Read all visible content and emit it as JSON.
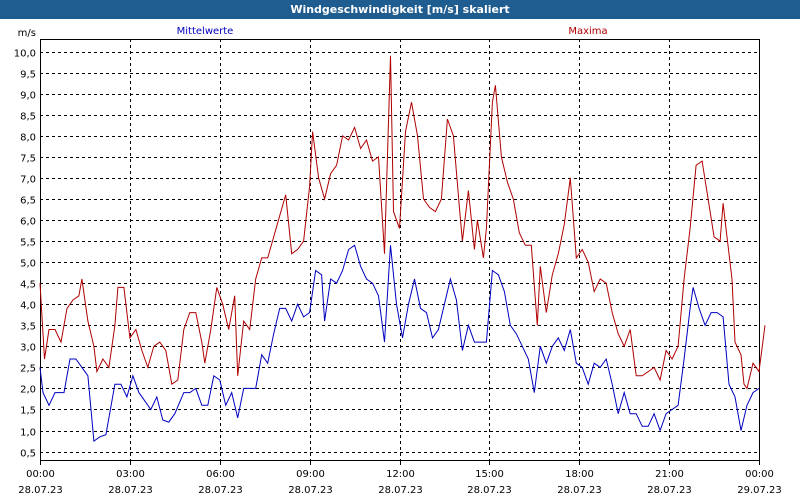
{
  "window": {
    "title": "Windgeschwindigkeit [m/s] skaliert"
  },
  "chart_data": {
    "type": "line",
    "title": "Windgeschwindigkeit [m/s] skaliert",
    "ylabel": "m/s",
    "ylim": [
      0.3,
      10.3
    ],
    "yticks": [
      "10,0",
      "9,5",
      "9,0",
      "8,5",
      "8,0",
      "7,5",
      "7,0",
      "6,5",
      "6,0",
      "5,5",
      "5,0",
      "4,5",
      "4,0",
      "3,5",
      "3,0",
      "2,5",
      "2,0",
      "1,5",
      "1,0",
      "0,5"
    ],
    "xlim": [
      0,
      24
    ],
    "xticks": [
      {
        "time": "00:00",
        "date": "28.07.23"
      },
      {
        "time": "03:00",
        "date": "28.07.23"
      },
      {
        "time": "06:00",
        "date": "28.07.23"
      },
      {
        "time": "09:00",
        "date": "28.07.23"
      },
      {
        "time": "12:00",
        "date": "28.07.23"
      },
      {
        "time": "15:00",
        "date": "28.07.23"
      },
      {
        "time": "18:00",
        "date": "28.07.23"
      },
      {
        "time": "21:00",
        "date": "28.07.23"
      },
      {
        "time": "00:00",
        "date": "29.07.23"
      }
    ],
    "grid": true,
    "series": [
      {
        "name": "Mittelwerte",
        "color": "#0000c0",
        "points": [
          [
            0,
            2.5
          ],
          [
            0.1,
            1.9
          ],
          [
            0.3,
            1.6
          ],
          [
            0.5,
            1.9
          ],
          [
            0.8,
            1.9
          ],
          [
            1.0,
            2.7
          ],
          [
            1.2,
            2.7
          ],
          [
            1.4,
            2.5
          ],
          [
            1.6,
            2.3
          ],
          [
            1.8,
            0.75
          ],
          [
            2.0,
            0.85
          ],
          [
            2.2,
            0.9
          ],
          [
            2.5,
            2.1
          ],
          [
            2.7,
            2.1
          ],
          [
            2.9,
            1.8
          ],
          [
            3.1,
            2.3
          ],
          [
            3.3,
            1.9
          ],
          [
            3.5,
            1.7
          ],
          [
            3.7,
            1.5
          ],
          [
            3.9,
            1.8
          ],
          [
            4.1,
            1.25
          ],
          [
            4.3,
            1.2
          ],
          [
            4.5,
            1.4
          ],
          [
            4.8,
            1.9
          ],
          [
            5.0,
            1.9
          ],
          [
            5.2,
            2.0
          ],
          [
            5.4,
            1.6
          ],
          [
            5.6,
            1.6
          ],
          [
            5.8,
            2.3
          ],
          [
            6.0,
            2.2
          ],
          [
            6.2,
            1.6
          ],
          [
            6.4,
            1.9
          ],
          [
            6.6,
            1.3
          ],
          [
            6.8,
            2.0
          ],
          [
            7.0,
            2.0
          ],
          [
            7.2,
            2.0
          ],
          [
            7.4,
            2.8
          ],
          [
            7.6,
            2.6
          ],
          [
            7.8,
            3.3
          ],
          [
            8.0,
            3.9
          ],
          [
            8.2,
            3.9
          ],
          [
            8.4,
            3.6
          ],
          [
            8.6,
            4.0
          ],
          [
            8.8,
            3.7
          ],
          [
            9.0,
            3.8
          ],
          [
            9.2,
            4.8
          ],
          [
            9.4,
            4.7
          ],
          [
            9.5,
            3.6
          ],
          [
            9.7,
            4.6
          ],
          [
            9.9,
            4.5
          ],
          [
            10.1,
            4.8
          ],
          [
            10.3,
            5.3
          ],
          [
            10.5,
            5.4
          ],
          [
            10.7,
            4.9
          ],
          [
            10.9,
            4.6
          ],
          [
            11.1,
            4.5
          ],
          [
            11.3,
            4.2
          ],
          [
            11.5,
            3.1
          ],
          [
            11.7,
            5.4
          ],
          [
            11.9,
            4.0
          ],
          [
            12.1,
            3.2
          ],
          [
            12.3,
            4.0
          ],
          [
            12.5,
            4.6
          ],
          [
            12.7,
            3.9
          ],
          [
            12.9,
            3.8
          ],
          [
            13.1,
            3.2
          ],
          [
            13.3,
            3.4
          ],
          [
            13.5,
            4.0
          ],
          [
            13.7,
            4.6
          ],
          [
            13.9,
            4.1
          ],
          [
            14.1,
            2.9
          ],
          [
            14.3,
            3.5
          ],
          [
            14.5,
            3.1
          ],
          [
            14.9,
            3.1
          ],
          [
            15.1,
            4.8
          ],
          [
            15.3,
            4.7
          ],
          [
            15.5,
            4.3
          ],
          [
            15.7,
            3.5
          ],
          [
            15.9,
            3.3
          ],
          [
            16.1,
            3.0
          ],
          [
            16.3,
            2.7
          ],
          [
            16.5,
            1.9
          ],
          [
            16.7,
            3.0
          ],
          [
            16.9,
            2.6
          ],
          [
            17.1,
            3.0
          ],
          [
            17.3,
            3.2
          ],
          [
            17.5,
            2.9
          ],
          [
            17.7,
            3.4
          ],
          [
            17.9,
            2.6
          ],
          [
            18.1,
            2.5
          ],
          [
            18.3,
            2.1
          ],
          [
            18.5,
            2.6
          ],
          [
            18.7,
            2.5
          ],
          [
            18.9,
            2.7
          ],
          [
            19.1,
            2.1
          ],
          [
            19.3,
            1.4
          ],
          [
            19.5,
            1.9
          ],
          [
            19.7,
            1.4
          ],
          [
            19.9,
            1.4
          ],
          [
            20.1,
            1.1
          ],
          [
            20.3,
            1.1
          ],
          [
            20.5,
            1.4
          ],
          [
            20.7,
            1.0
          ],
          [
            20.9,
            1.4
          ],
          [
            21.1,
            1.5
          ],
          [
            21.3,
            1.6
          ],
          [
            21.5,
            2.7
          ],
          [
            21.7,
            3.9
          ],
          [
            21.8,
            4.4
          ],
          [
            22.0,
            3.9
          ],
          [
            22.2,
            3.5
          ],
          [
            22.4,
            3.8
          ],
          [
            22.6,
            3.8
          ],
          [
            22.8,
            3.7
          ],
          [
            23.0,
            2.1
          ],
          [
            23.2,
            1.8
          ],
          [
            23.4,
            1.0
          ],
          [
            23.6,
            1.6
          ],
          [
            23.8,
            1.9
          ],
          [
            24.0,
            2.0
          ]
        ]
      },
      {
        "name": "Maxima",
        "color": "#b00000",
        "points": [
          [
            0,
            4.5
          ],
          [
            0.15,
            2.7
          ],
          [
            0.3,
            3.4
          ],
          [
            0.5,
            3.4
          ],
          [
            0.7,
            3.1
          ],
          [
            0.9,
            3.9
          ],
          [
            1.1,
            4.1
          ],
          [
            1.3,
            4.2
          ],
          [
            1.4,
            4.6
          ],
          [
            1.6,
            3.6
          ],
          [
            1.8,
            3.0
          ],
          [
            1.9,
            2.4
          ],
          [
            2.1,
            2.7
          ],
          [
            2.3,
            2.5
          ],
          [
            2.5,
            3.5
          ],
          [
            2.6,
            4.4
          ],
          [
            2.8,
            4.4
          ],
          [
            3.0,
            3.2
          ],
          [
            3.2,
            3.4
          ],
          [
            3.4,
            2.9
          ],
          [
            3.6,
            2.5
          ],
          [
            3.8,
            3.0
          ],
          [
            4.0,
            3.1
          ],
          [
            4.2,
            2.9
          ],
          [
            4.4,
            2.1
          ],
          [
            4.6,
            2.2
          ],
          [
            4.8,
            3.4
          ],
          [
            5.0,
            3.8
          ],
          [
            5.2,
            3.8
          ],
          [
            5.4,
            3.1
          ],
          [
            5.5,
            2.6
          ],
          [
            5.7,
            3.4
          ],
          [
            5.9,
            4.4
          ],
          [
            6.1,
            4.0
          ],
          [
            6.3,
            3.4
          ],
          [
            6.5,
            4.2
          ],
          [
            6.6,
            2.3
          ],
          [
            6.8,
            3.6
          ],
          [
            7.0,
            3.4
          ],
          [
            7.2,
            4.6
          ],
          [
            7.4,
            5.1
          ],
          [
            7.6,
            5.1
          ],
          [
            7.8,
            5.6
          ],
          [
            8.0,
            6.1
          ],
          [
            8.2,
            6.6
          ],
          [
            8.4,
            5.2
          ],
          [
            8.6,
            5.3
          ],
          [
            8.8,
            5.5
          ],
          [
            9.0,
            6.8
          ],
          [
            9.1,
            8.1
          ],
          [
            9.3,
            7.0
          ],
          [
            9.5,
            6.5
          ],
          [
            9.7,
            7.1
          ],
          [
            9.9,
            7.3
          ],
          [
            10.1,
            8.0
          ],
          [
            10.3,
            7.9
          ],
          [
            10.5,
            8.2
          ],
          [
            10.7,
            7.7
          ],
          [
            10.9,
            7.9
          ],
          [
            11.1,
            7.4
          ],
          [
            11.3,
            7.5
          ],
          [
            11.5,
            5.2
          ],
          [
            11.7,
            9.9
          ],
          [
            11.8,
            6.2
          ],
          [
            12.0,
            5.8
          ],
          [
            12.2,
            8.1
          ],
          [
            12.4,
            8.8
          ],
          [
            12.6,
            8.0
          ],
          [
            12.8,
            6.5
          ],
          [
            13.0,
            6.3
          ],
          [
            13.2,
            6.2
          ],
          [
            13.4,
            6.5
          ],
          [
            13.6,
            8.4
          ],
          [
            13.8,
            8.0
          ],
          [
            14.0,
            6.3
          ],
          [
            14.1,
            5.5
          ],
          [
            14.3,
            6.7
          ],
          [
            14.5,
            5.3
          ],
          [
            14.6,
            6.0
          ],
          [
            14.8,
            5.1
          ],
          [
            14.9,
            5.8
          ],
          [
            15.1,
            8.8
          ],
          [
            15.2,
            9.2
          ],
          [
            15.4,
            7.5
          ],
          [
            15.6,
            6.9
          ],
          [
            15.8,
            6.5
          ],
          [
            16.0,
            5.7
          ],
          [
            16.2,
            5.4
          ],
          [
            16.4,
            5.4
          ],
          [
            16.6,
            3.5
          ],
          [
            16.7,
            4.9
          ],
          [
            16.9,
            3.8
          ],
          [
            17.1,
            4.7
          ],
          [
            17.3,
            5.2
          ],
          [
            17.5,
            5.9
          ],
          [
            17.7,
            7.0
          ],
          [
            17.9,
            5.1
          ],
          [
            18.1,
            5.3
          ],
          [
            18.3,
            5.0
          ],
          [
            18.5,
            4.3
          ],
          [
            18.7,
            4.6
          ],
          [
            18.9,
            4.5
          ],
          [
            19.1,
            3.8
          ],
          [
            19.3,
            3.3
          ],
          [
            19.5,
            3.0
          ],
          [
            19.7,
            3.4
          ],
          [
            19.9,
            2.3
          ],
          [
            20.1,
            2.3
          ],
          [
            20.3,
            2.4
          ],
          [
            20.5,
            2.5
          ],
          [
            20.7,
            2.2
          ],
          [
            20.9,
            2.9
          ],
          [
            21.1,
            2.7
          ],
          [
            21.3,
            3.0
          ],
          [
            21.5,
            4.6
          ],
          [
            21.7,
            5.8
          ],
          [
            21.9,
            7.3
          ],
          [
            22.1,
            7.4
          ],
          [
            22.3,
            6.5
          ],
          [
            22.5,
            5.6
          ],
          [
            22.7,
            5.5
          ],
          [
            22.8,
            6.4
          ],
          [
            22.9,
            5.8
          ],
          [
            23.1,
            4.6
          ],
          [
            23.2,
            3.1
          ],
          [
            23.4,
            2.8
          ],
          [
            23.5,
            2.1
          ],
          [
            23.6,
            2.0
          ],
          [
            23.8,
            2.6
          ],
          [
            24.0,
            2.4
          ],
          [
            24.2,
            3.5
          ]
        ]
      }
    ]
  }
}
